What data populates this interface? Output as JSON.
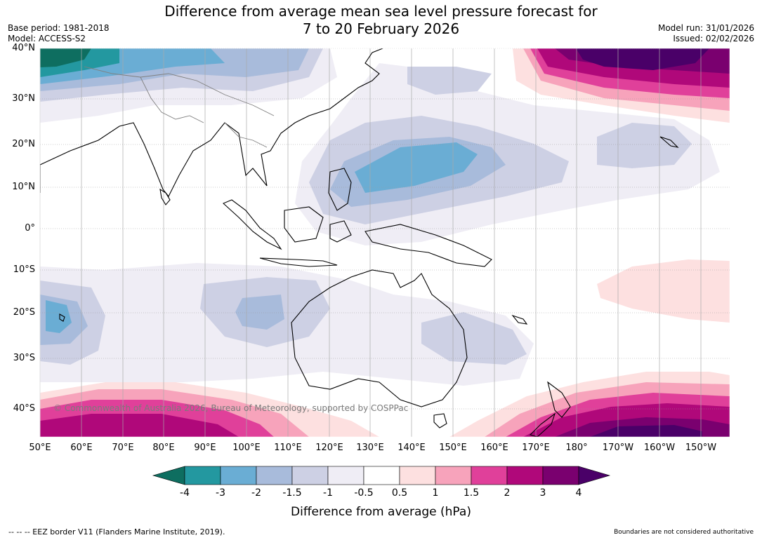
{
  "title_line1": "Difference from average mean sea level pressure forecast for",
  "title_line2": "7 to 20 February 2026",
  "base_period": "Base period: 1981-2018",
  "model": "Model: ACCESS-S2",
  "model_run": "Model run: 31/01/2026",
  "issued": "Issued: 02/02/2026",
  "lat_labels": [
    "40°N",
    "30°N",
    "20°N",
    "10°N",
    "0°",
    "10°S",
    "20°S",
    "30°S",
    "40°S"
  ],
  "lon_labels": [
    "50°E",
    "60°E",
    "70°E",
    "80°E",
    "90°E",
    "100°E",
    "110°E",
    "120°E",
    "130°E",
    "140°E",
    "150°E",
    "160°E",
    "170°E",
    "180°",
    "170°W",
    "160°W",
    "150°W"
  ],
  "copyright": "© Commonwealth of Australia 2026, Bureau of Meteorology, supported by COSPPac",
  "colorbar": {
    "labels": [
      "-4",
      "-3",
      "-2",
      "-1.5",
      "-1",
      "-0.5",
      "0.5",
      "1",
      "1.5",
      "2",
      "3",
      "4"
    ],
    "colors": [
      "#0e6e60",
      "#2398a0",
      "#6aadd4",
      "#a8bbdb",
      "#cdd0e4",
      "#efedf5",
      "#ffffff",
      "#fde0e0",
      "#f7a3bb",
      "#e0409a",
      "#b0087a",
      "#7a006f",
      "#4a0068"
    ],
    "title": "Difference from average (hPa)"
  },
  "footer_left": "--  --  -- EEZ border V11 (Flanders Marine Institute, 2019).",
  "footer_right": "Boundaries are not considered authoritative"
}
